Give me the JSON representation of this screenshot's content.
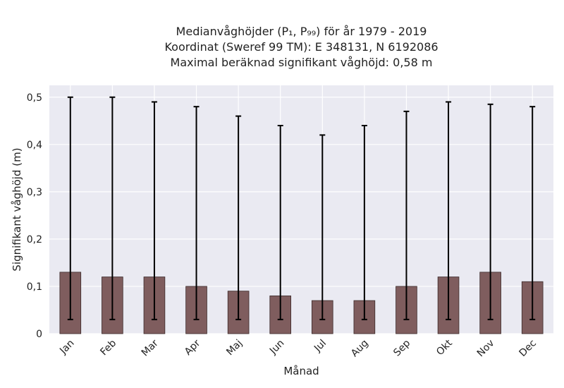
{
  "chart_data": {
    "type": "bar",
    "title_lines": [
      "Medianvåghöjder (P₁, P₉₉) för år 1979 - 2019",
      "Koordinat (Sweref 99 TM): E 348131, N 6192086",
      "Maximal beräknad signifikant våghöjd: 0,58 m"
    ],
    "xlabel": "Månad",
    "ylabel": "Signifikant våghöjd (m)",
    "categories": [
      "Jan",
      "Feb",
      "Mar",
      "Apr",
      "Maj",
      "Jun",
      "Jul",
      "Aug",
      "Sep",
      "Okt",
      "Nov",
      "Dec"
    ],
    "values": [
      0.13,
      0.12,
      0.12,
      0.1,
      0.09,
      0.08,
      0.07,
      0.07,
      0.1,
      0.12,
      0.13,
      0.11
    ],
    "err_low": [
      0.03,
      0.03,
      0.03,
      0.03,
      0.03,
      0.03,
      0.03,
      0.03,
      0.03,
      0.03,
      0.03,
      0.03
    ],
    "err_high": [
      0.5,
      0.5,
      0.49,
      0.48,
      0.46,
      0.44,
      0.42,
      0.44,
      0.47,
      0.49,
      0.485,
      0.48
    ],
    "ylim": [
      0,
      0.525
    ],
    "yticks": [
      0,
      0.1,
      0.2,
      0.3,
      0.4,
      0.5
    ],
    "ytick_labels": [
      "0",
      "0,1",
      "0,2",
      "0,3",
      "0,4",
      "0,5"
    ],
    "grid": true,
    "colors": {
      "bar": "#7f5d5e",
      "bar_edge": "#3b2a2a",
      "plot_bg": "#eaeaf2",
      "grid": "#ffffff",
      "error": "#000000"
    }
  }
}
